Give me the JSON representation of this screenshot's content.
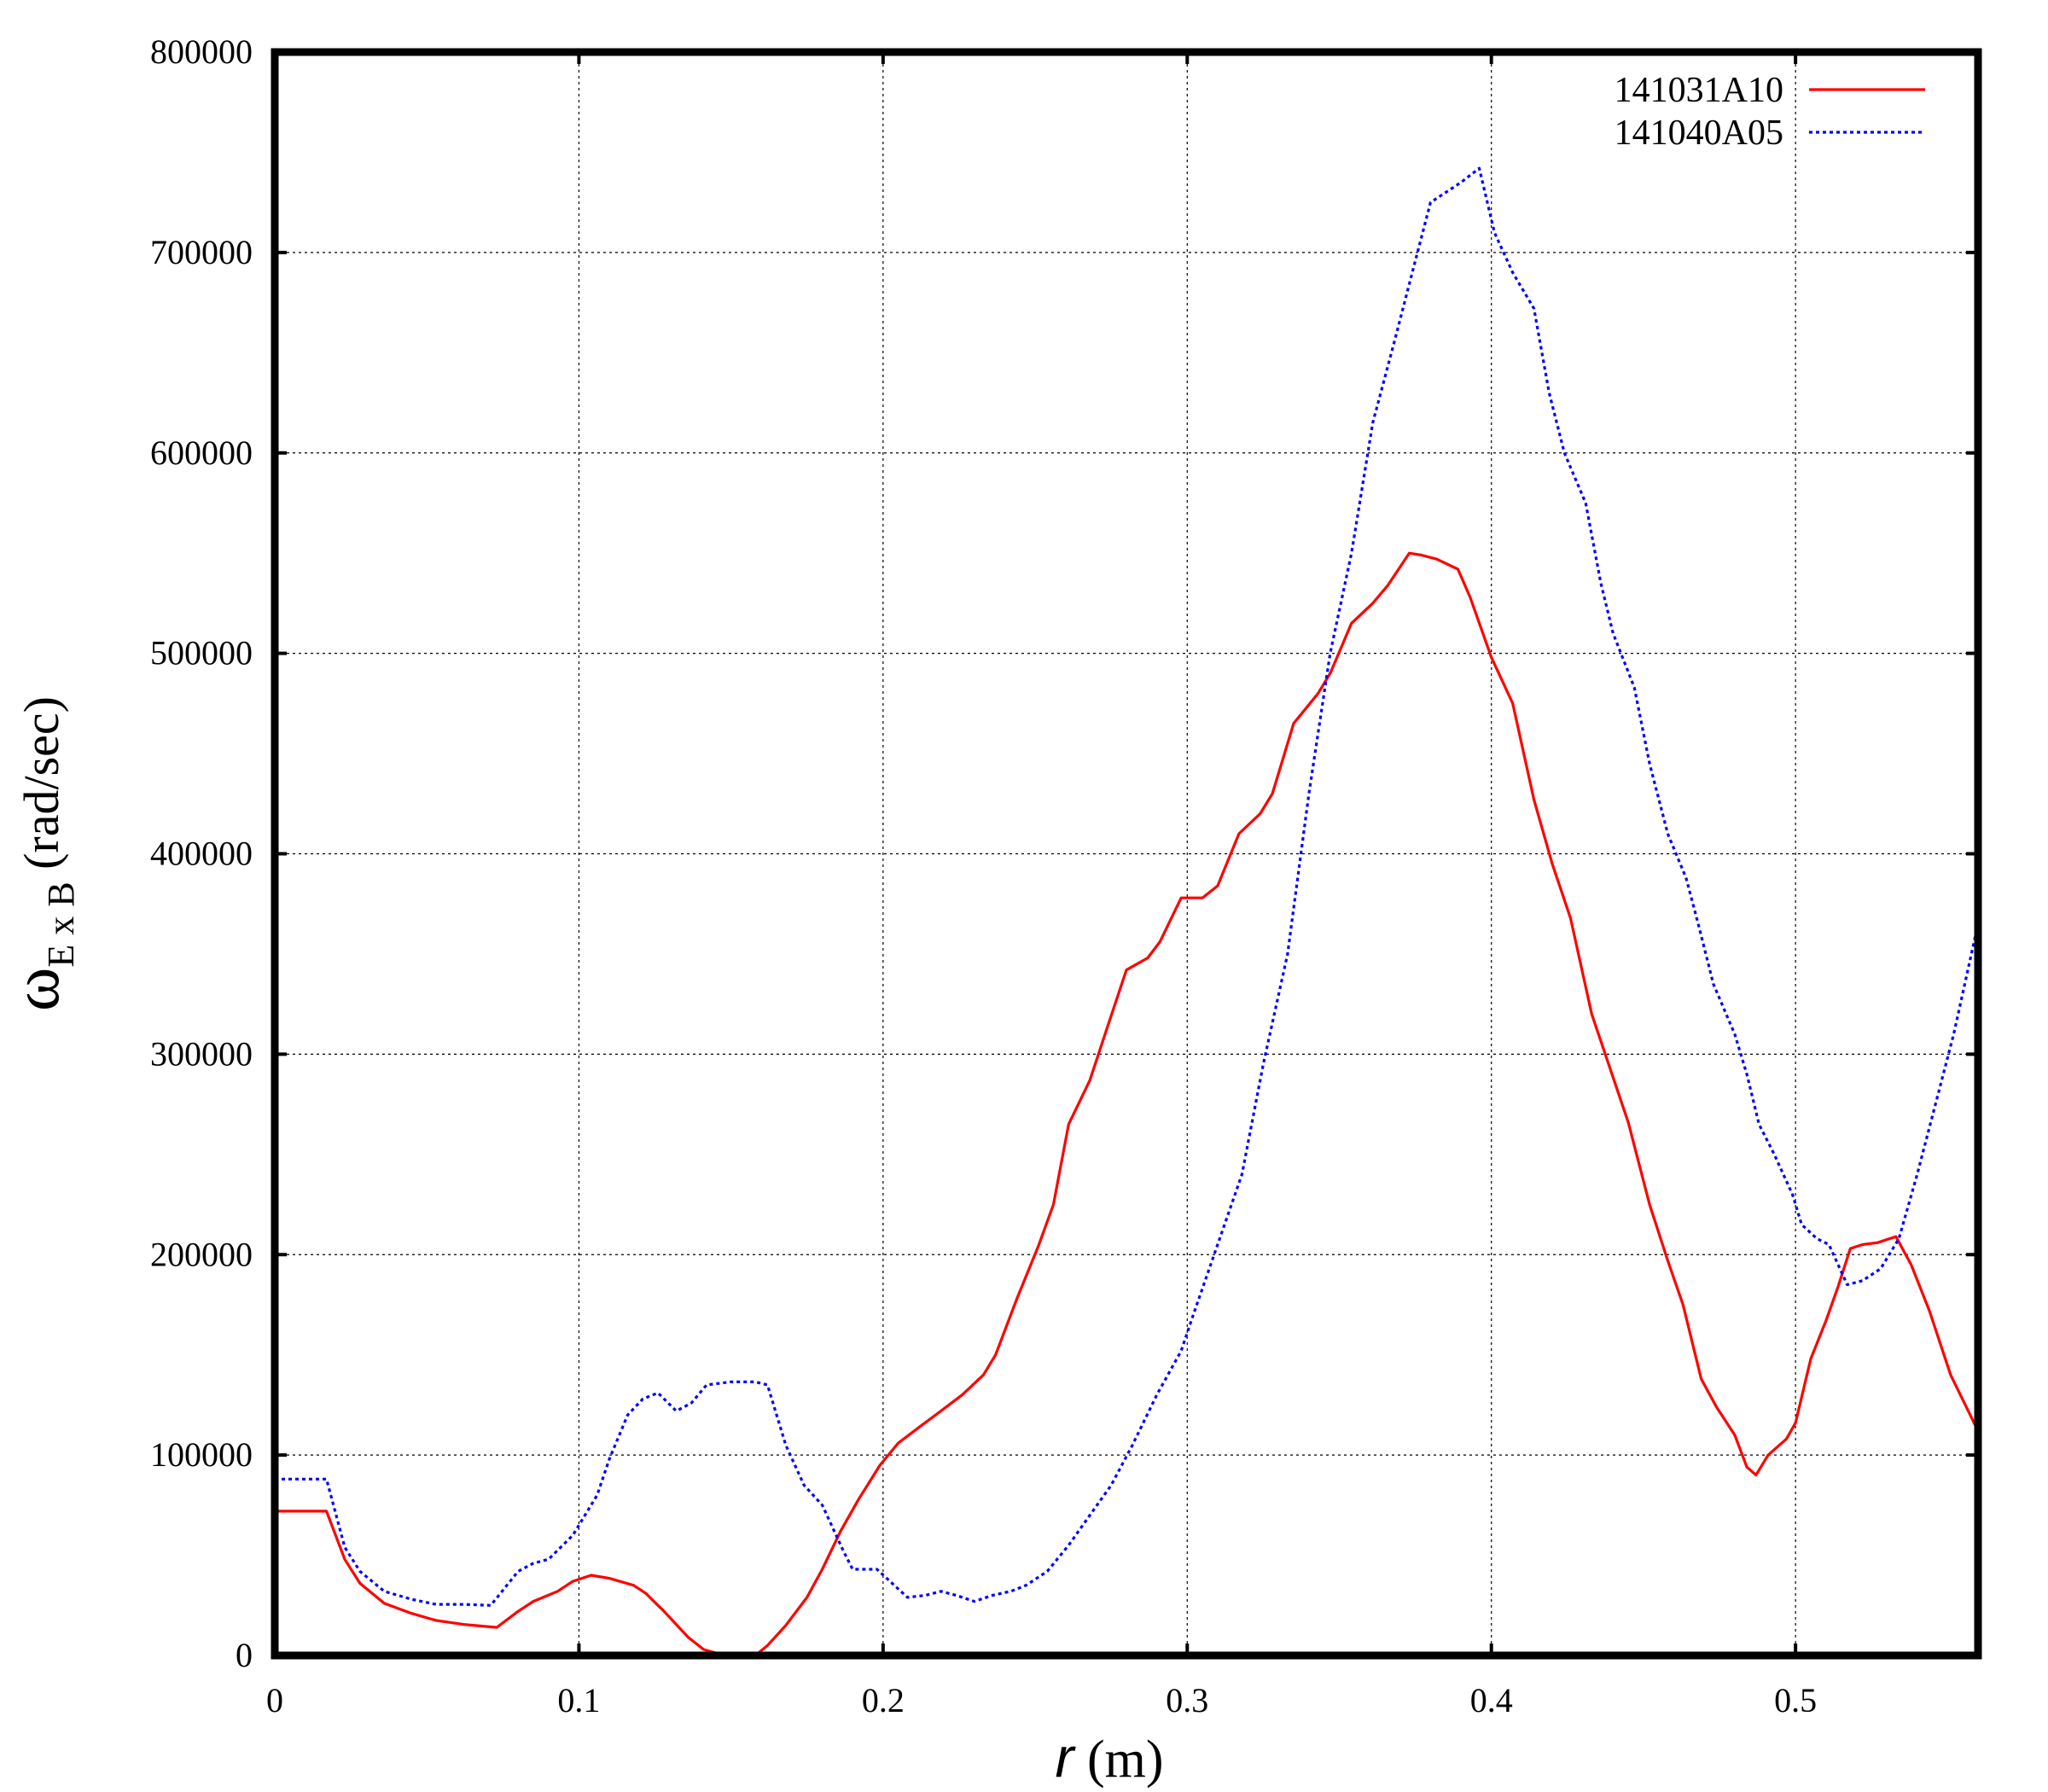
{
  "chart_data": {
    "type": "line",
    "xlabel": {
      "var": "r",
      "unit": " (m)"
    },
    "ylabel": {
      "main": "ω",
      "sub": "E x B",
      "unit": " (rad/sec)"
    },
    "xlim": [
      0,
      0.56
    ],
    "ylim": [
      0,
      800000
    ],
    "x_ticks": [
      0,
      0.1,
      0.2,
      0.3,
      0.4,
      0.5
    ],
    "x_tick_labels": [
      "0",
      "0.1",
      "0.2",
      "0.3",
      "0.4",
      "0.5"
    ],
    "y_ticks": [
      0,
      100000,
      200000,
      300000,
      400000,
      500000,
      600000,
      700000,
      800000
    ],
    "y_tick_labels": [
      "0",
      "100000",
      "200000",
      "300000",
      "400000",
      "500000",
      "600000",
      "700000",
      "800000"
    ],
    "grid": true,
    "legend_position": "top-right",
    "series": [
      {
        "name": "141031A10",
        "color": "#ff0000",
        "dash": "solid",
        "points": [
          [
            0,
            72000
          ],
          [
            0.017,
            72000
          ],
          [
            0.023,
            48000
          ],
          [
            0.028,
            36000
          ],
          [
            0.036,
            26000
          ],
          [
            0.045,
            21000
          ],
          [
            0.053,
            17500
          ],
          [
            0.062,
            15500
          ],
          [
            0.073,
            14000
          ],
          [
            0.08,
            22000
          ],
          [
            0.085,
            27000
          ],
          [
            0.093,
            32000
          ],
          [
            0.098,
            37000
          ],
          [
            0.104,
            40000
          ],
          [
            0.11,
            38500
          ],
          [
            0.118,
            35000
          ],
          [
            0.122,
            31000
          ],
          [
            0.128,
            22000
          ],
          [
            0.136,
            9000
          ],
          [
            0.141,
            3000
          ],
          [
            0.146,
            800
          ],
          [
            0.152,
            0
          ],
          [
            0.158,
            0
          ],
          [
            0.162,
            5000
          ],
          [
            0.168,
            15000
          ],
          [
            0.175,
            29000
          ],
          [
            0.18,
            43000
          ],
          [
            0.186,
            62000
          ],
          [
            0.192,
            78000
          ],
          [
            0.199,
            95000
          ],
          [
            0.205,
            106000
          ],
          [
            0.212,
            114000
          ],
          [
            0.219,
            122000
          ],
          [
            0.226,
            130000
          ],
          [
            0.233,
            140000
          ],
          [
            0.237,
            150000
          ],
          [
            0.244,
            178000
          ],
          [
            0.251,
            204000
          ],
          [
            0.256,
            225000
          ],
          [
            0.261,
            265000
          ],
          [
            0.268,
            287000
          ],
          [
            0.273,
            310000
          ],
          [
            0.28,
            342000
          ],
          [
            0.287,
            348000
          ],
          [
            0.291,
            356000
          ],
          [
            0.298,
            378000
          ],
          [
            0.305,
            378000
          ],
          [
            0.31,
            384000
          ],
          [
            0.317,
            410000
          ],
          [
            0.324,
            420000
          ],
          [
            0.328,
            430000
          ],
          [
            0.335,
            465000
          ],
          [
            0.343,
            480000
          ],
          [
            0.347,
            490000
          ],
          [
            0.354,
            515000
          ],
          [
            0.361,
            525000
          ],
          [
            0.366,
            534000
          ],
          [
            0.373,
            550000
          ],
          [
            0.377,
            549000
          ],
          [
            0.382,
            547000
          ],
          [
            0.389,
            542000
          ],
          [
            0.393,
            528000
          ],
          [
            0.4,
            498000
          ],
          [
            0.407,
            475000
          ],
          [
            0.414,
            427000
          ],
          [
            0.42,
            395000
          ],
          [
            0.426,
            368000
          ],
          [
            0.433,
            320000
          ],
          [
            0.439,
            293000
          ],
          [
            0.445,
            266000
          ],
          [
            0.452,
            225000
          ],
          [
            0.458,
            197000
          ],
          [
            0.463,
            175000
          ],
          [
            0.469,
            138000
          ],
          [
            0.474,
            124000
          ],
          [
            0.48,
            110000
          ],
          [
            0.484,
            94000
          ],
          [
            0.487,
            90000
          ],
          [
            0.491,
            100000
          ],
          [
            0.497,
            108000
          ],
          [
            0.5,
            116000
          ],
          [
            0.505,
            148000
          ],
          [
            0.51,
            167000
          ],
          [
            0.514,
            184000
          ],
          [
            0.518,
            203000
          ],
          [
            0.522,
            205000
          ],
          [
            0.527,
            206000
          ],
          [
            0.533,
            209000
          ],
          [
            0.538,
            195000
          ],
          [
            0.544,
            172000
          ],
          [
            0.551,
            140000
          ],
          [
            0.56,
            112000
          ]
        ]
      },
      {
        "name": "141040A05",
        "color": "#0000ff",
        "dash": "dotted",
        "points": [
          [
            0,
            88000
          ],
          [
            0.017,
            88000
          ],
          [
            0.023,
            54000
          ],
          [
            0.028,
            42000
          ],
          [
            0.036,
            32000
          ],
          [
            0.045,
            28000
          ],
          [
            0.053,
            25500
          ],
          [
            0.062,
            25500
          ],
          [
            0.071,
            25000
          ],
          [
            0.08,
            42000
          ],
          [
            0.085,
            46000
          ],
          [
            0.09,
            48000
          ],
          [
            0.098,
            60000
          ],
          [
            0.106,
            80000
          ],
          [
            0.11,
            98000
          ],
          [
            0.116,
            120000
          ],
          [
            0.121,
            128000
          ],
          [
            0.126,
            131000
          ],
          [
            0.132,
            122000
          ],
          [
            0.137,
            126000
          ],
          [
            0.142,
            135000
          ],
          [
            0.15,
            136500
          ],
          [
            0.158,
            136500
          ],
          [
            0.162,
            135000
          ],
          [
            0.168,
            105000
          ],
          [
            0.174,
            85000
          ],
          [
            0.18,
            75000
          ],
          [
            0.187,
            52000
          ],
          [
            0.19,
            43000
          ],
          [
            0.198,
            43000
          ],
          [
            0.203,
            36000
          ],
          [
            0.208,
            29000
          ],
          [
            0.214,
            30000
          ],
          [
            0.219,
            32000
          ],
          [
            0.224,
            30000
          ],
          [
            0.23,
            27000
          ],
          [
            0.236,
            30000
          ],
          [
            0.242,
            32000
          ],
          [
            0.247,
            35000
          ],
          [
            0.254,
            42000
          ],
          [
            0.261,
            55000
          ],
          [
            0.268,
            70000
          ],
          [
            0.275,
            85000
          ],
          [
            0.282,
            105000
          ],
          [
            0.29,
            130000
          ],
          [
            0.298,
            152000
          ],
          [
            0.302,
            170000
          ],
          [
            0.31,
            205000
          ],
          [
            0.318,
            240000
          ],
          [
            0.325,
            295000
          ],
          [
            0.333,
            350000
          ],
          [
            0.34,
            430000
          ],
          [
            0.347,
            500000
          ],
          [
            0.354,
            550000
          ],
          [
            0.361,
            615000
          ],
          [
            0.368,
            655000
          ],
          [
            0.374,
            690000
          ],
          [
            0.38,
            725000
          ],
          [
            0.39,
            735000
          ],
          [
            0.396,
            742000
          ],
          [
            0.401,
            710000
          ],
          [
            0.407,
            690000
          ],
          [
            0.414,
            672000
          ],
          [
            0.419,
            630000
          ],
          [
            0.424,
            600000
          ],
          [
            0.431,
            575000
          ],
          [
            0.436,
            535000
          ],
          [
            0.44,
            510000
          ],
          [
            0.447,
            483000
          ],
          [
            0.452,
            445000
          ],
          [
            0.458,
            410000
          ],
          [
            0.464,
            388000
          ],
          [
            0.468,
            365000
          ],
          [
            0.473,
            335000
          ],
          [
            0.48,
            310000
          ],
          [
            0.484,
            290000
          ],
          [
            0.488,
            265000
          ],
          [
            0.493,
            250000
          ],
          [
            0.499,
            230000
          ],
          [
            0.502,
            215000
          ],
          [
            0.507,
            208000
          ],
          [
            0.511,
            205000
          ],
          [
            0.517,
            185000
          ],
          [
            0.522,
            187000
          ],
          [
            0.528,
            193000
          ],
          [
            0.534,
            208000
          ],
          [
            0.54,
            240000
          ],
          [
            0.546,
            275000
          ],
          [
            0.552,
            310000
          ],
          [
            0.56,
            365000
          ]
        ]
      }
    ]
  }
}
